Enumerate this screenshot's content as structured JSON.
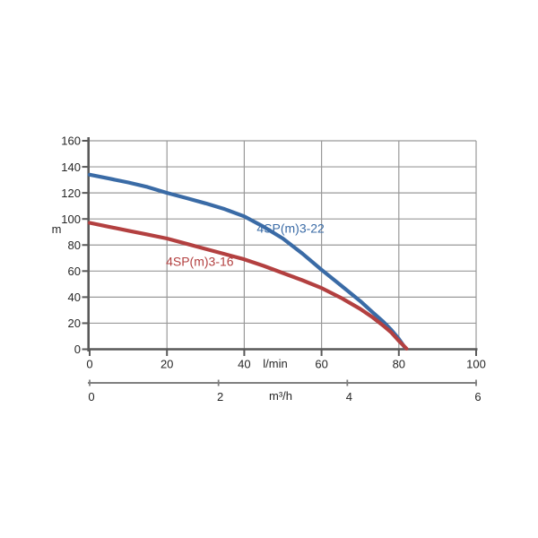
{
  "page": {
    "background": "#ffffff"
  },
  "chart_data": {
    "type": "line",
    "title": "",
    "grid": true,
    "legend_position": "inline-labels",
    "colors": {
      "gridline": "#999999",
      "axis": "#595959",
      "secondary_axis": "#7f7f7f",
      "text": "#262626"
    },
    "y_axis": {
      "label": "m",
      "min": 0,
      "max": 160,
      "tick_step": 20,
      "ticks": [
        0,
        20,
        40,
        60,
        80,
        100,
        120,
        140,
        160
      ]
    },
    "x_axis_primary": {
      "label": "l/min",
      "min": 0,
      "max": 100,
      "tick_step": 20,
      "ticks": [
        0,
        20,
        40,
        60,
        80,
        100
      ]
    },
    "x_axis_secondary": {
      "label": "m³/h",
      "min": 0,
      "max": 6,
      "tick_step": 2,
      "ticks": [
        0,
        2,
        4,
        6
      ]
    },
    "series": [
      {
        "name": "4SP(m)3-22",
        "color": "#3a6ba6",
        "label_anchor": {
          "x": 52,
          "y": 93
        },
        "points_lmin_m": [
          [
            0,
            134
          ],
          [
            5,
            131
          ],
          [
            10,
            128
          ],
          [
            15,
            124.5
          ],
          [
            20,
            120
          ],
          [
            25,
            116
          ],
          [
            30,
            112
          ],
          [
            35,
            107.5
          ],
          [
            40,
            102
          ],
          [
            45,
            94
          ],
          [
            50,
            85
          ],
          [
            55,
            73.5
          ],
          [
            60,
            61
          ],
          [
            65,
            49
          ],
          [
            70,
            37
          ],
          [
            73,
            29
          ],
          [
            76,
            21
          ],
          [
            78,
            15
          ],
          [
            80,
            8
          ],
          [
            81.5,
            1.5
          ]
        ]
      },
      {
        "name": "4SP(m)3-16",
        "color": "#b34040",
        "label_anchor": {
          "x": 28.5,
          "y": 67.5
        },
        "points_lmin_m": [
          [
            0,
            97
          ],
          [
            5,
            94
          ],
          [
            10,
            91
          ],
          [
            15,
            88
          ],
          [
            20,
            85
          ],
          [
            25,
            81
          ],
          [
            30,
            77
          ],
          [
            35,
            73
          ],
          [
            40,
            69
          ],
          [
            45,
            64
          ],
          [
            50,
            58.5
          ],
          [
            55,
            53
          ],
          [
            60,
            47
          ],
          [
            65,
            39.5
          ],
          [
            70,
            31
          ],
          [
            73,
            25
          ],
          [
            76,
            18
          ],
          [
            78,
            13
          ],
          [
            80,
            6.5
          ],
          [
            82,
            0.5
          ]
        ]
      }
    ]
  }
}
